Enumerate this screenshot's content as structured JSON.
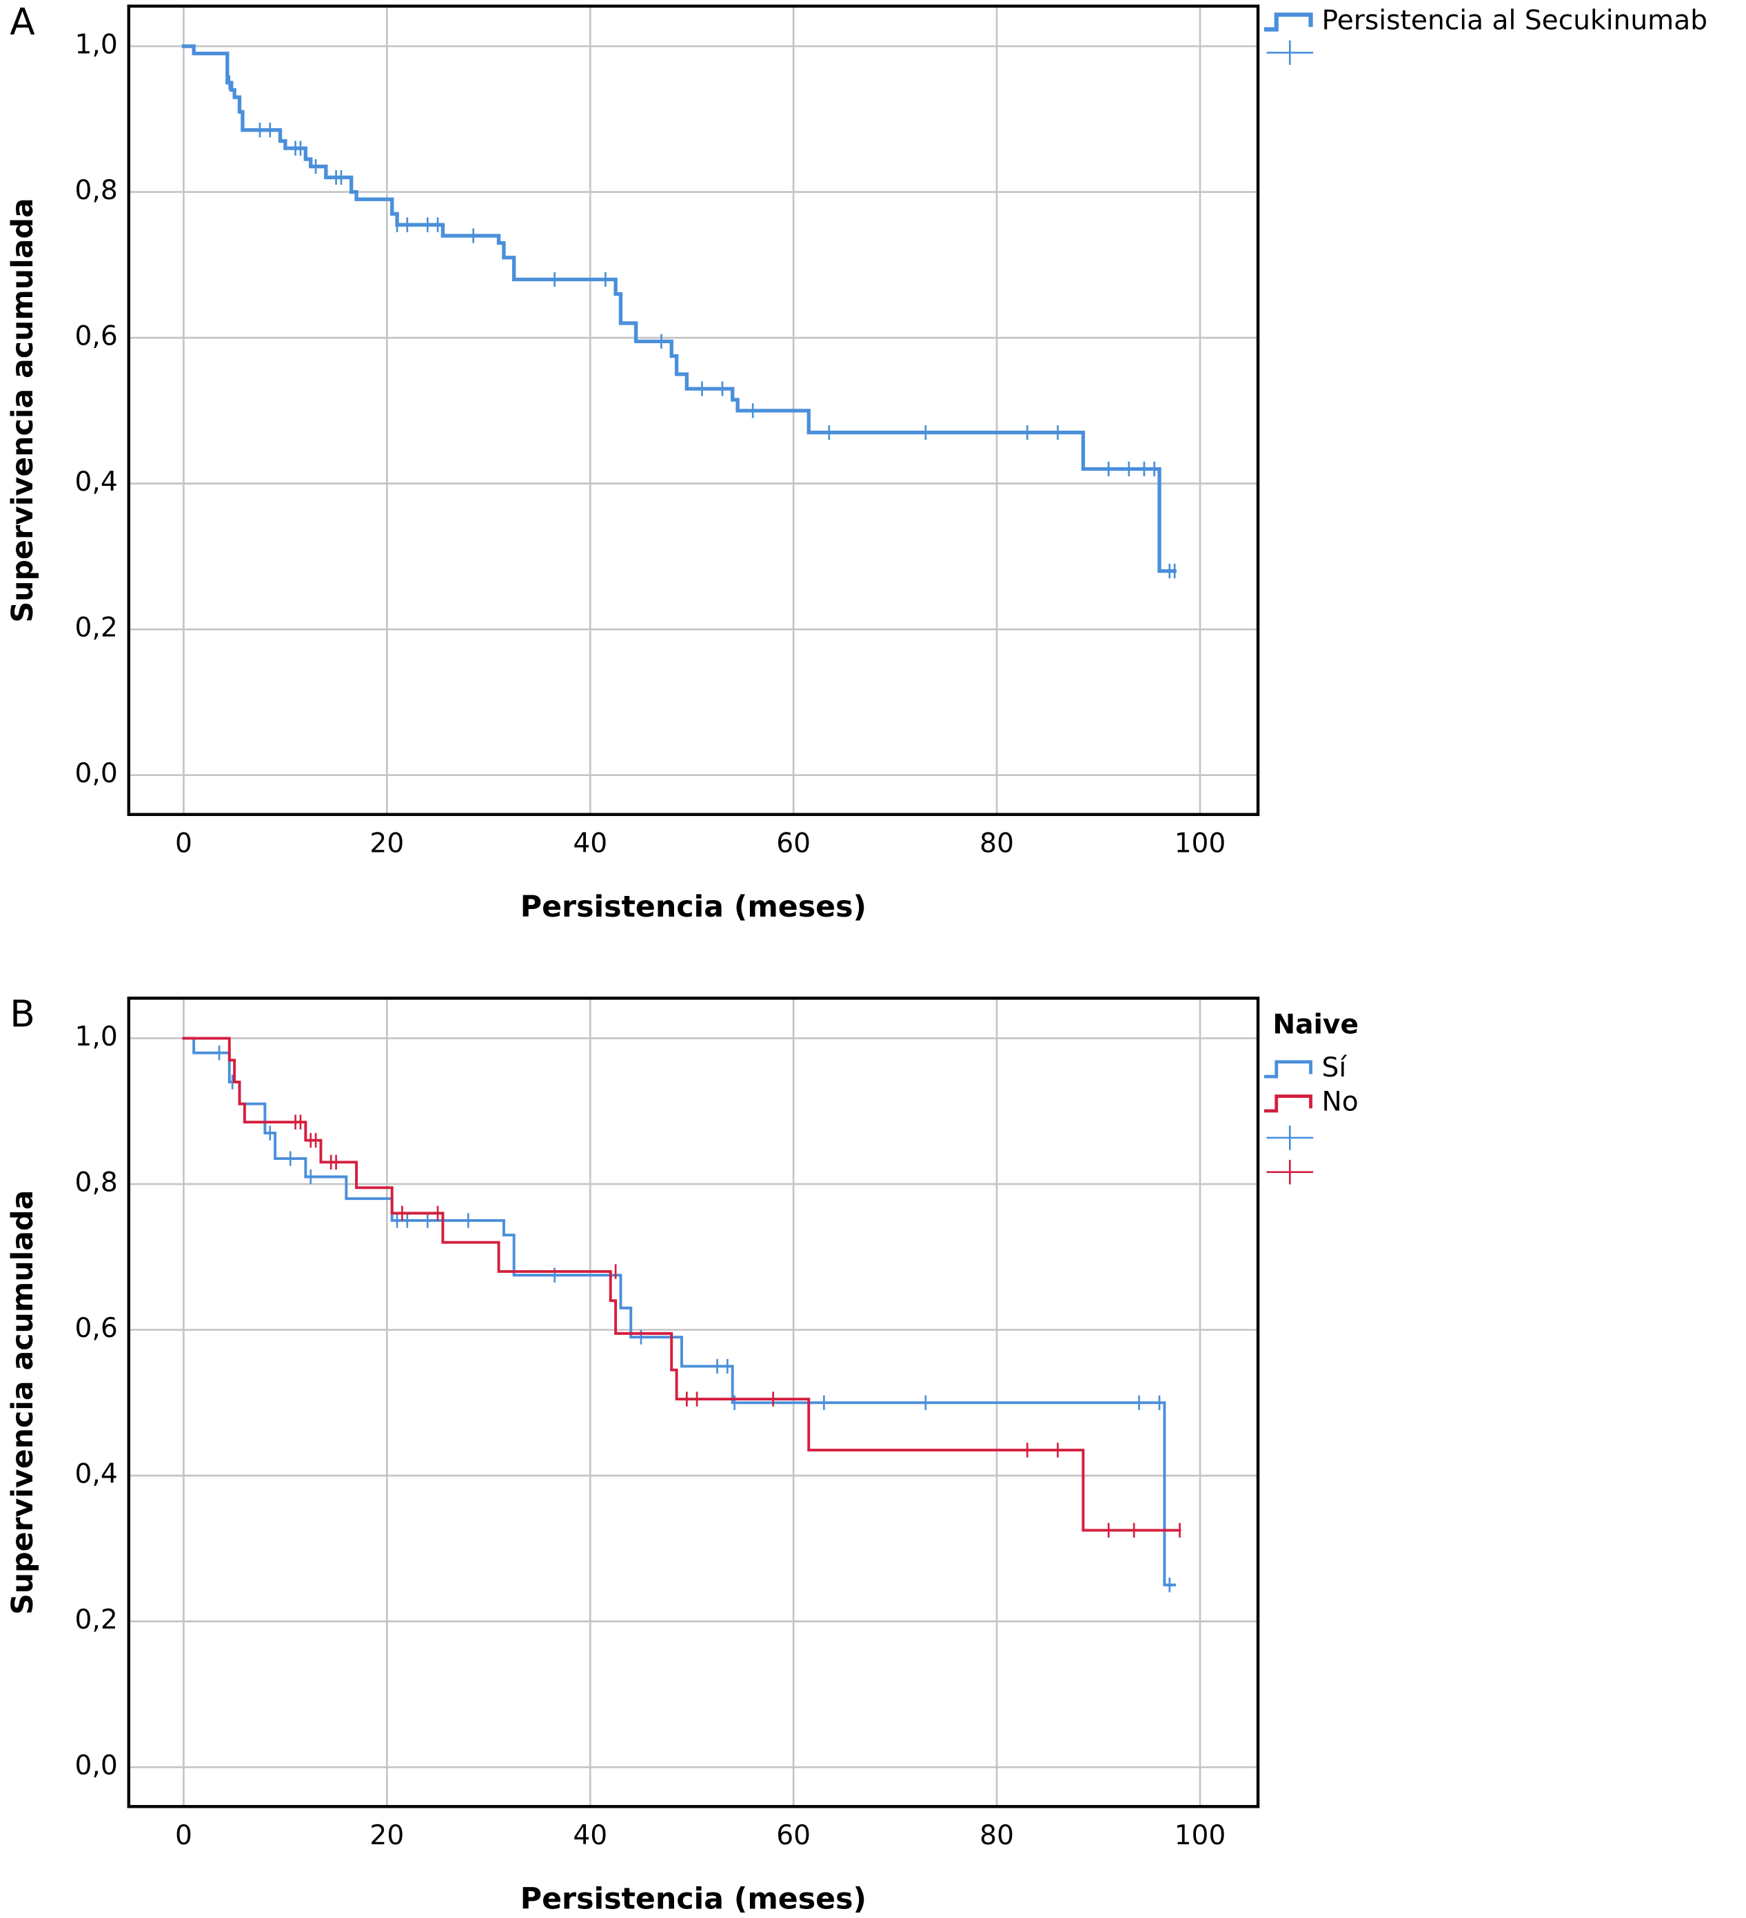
{
  "chart_data": [
    {
      "type": "step",
      "panel_label": "A",
      "x_label": "Persistencia (meses)",
      "y_label": "Supervivencia acumulada",
      "xlim": [
        -5.4,
        105.7
      ],
      "ylim": [
        -0.054,
        1.055
      ],
      "grid": true,
      "line_width": 3,
      "xticks": [
        0,
        20,
        40,
        60,
        80,
        100
      ],
      "yticks": [
        {
          "value": 0,
          "label": "0,0"
        },
        {
          "value": 0.2,
          "label": "0,2"
        },
        {
          "value": 0.4,
          "label": "0,4"
        },
        {
          "value": 0.6,
          "label": "0,6"
        },
        {
          "value": 0.8,
          "label": "0,8"
        },
        {
          "value": 1,
          "label": "1,0"
        }
      ],
      "series": [
        {
          "name": "Persistencia al Secukinumab",
          "color": "#4a8fdb",
          "x": [
            0,
            1,
            4.3,
            4.7,
            5,
            5.5,
            5.8,
            9.5,
            10,
            12,
            12.5,
            14,
            16.5,
            17,
            20.5,
            21,
            25.5,
            31,
            31.5,
            32.5,
            42.5,
            43,
            44.5,
            48,
            48.5,
            49.5,
            54,
            54.5,
            61.5,
            88.5,
            96,
            97.5
          ],
          "values": [
            1,
            0.99,
            0.95,
            0.94,
            0.93,
            0.91,
            0.885,
            0.87,
            0.86,
            0.845,
            0.835,
            0.82,
            0.8,
            0.79,
            0.77,
            0.755,
            0.74,
            0.73,
            0.71,
            0.68,
            0.66,
            0.62,
            0.595,
            0.575,
            0.55,
            0.53,
            0.515,
            0.5,
            0.47,
            0.42,
            0.28,
            0.28
          ],
          "censor_x": [
            4.5,
            7.5,
            8.5,
            11,
            11.5,
            13,
            15,
            15.5,
            21,
            22,
            24,
            25,
            28.5,
            36.5,
            41.5,
            47,
            51,
            53,
            56,
            63.5,
            73,
            83,
            86,
            91,
            93,
            94.5,
            95.5,
            97,
            97.5
          ],
          "censor_values": [
            0.95,
            0.885,
            0.885,
            0.86,
            0.86,
            0.835,
            0.82,
            0.82,
            0.755,
            0.755,
            0.755,
            0.755,
            0.74,
            0.68,
            0.68,
            0.595,
            0.53,
            0.53,
            0.5,
            0.47,
            0.47,
            0.47,
            0.47,
            0.42,
            0.42,
            0.42,
            0.42,
            0.28,
            0.28
          ]
        }
      ]
    },
    {
      "type": "step",
      "panel_label": "B",
      "x_label": "Persistencia (meses)",
      "y_label": "Supervivencia acumulada",
      "legend_title": "Naive",
      "xlim": [
        -5.4,
        105.7
      ],
      "ylim": [
        -0.054,
        1.055
      ],
      "grid": true,
      "line_width": 2.2,
      "xticks": [
        0,
        20,
        40,
        60,
        80,
        100
      ],
      "yticks": [
        {
          "value": 0,
          "label": "0,0"
        },
        {
          "value": 0.2,
          "label": "0,2"
        },
        {
          "value": 0.4,
          "label": "0,4"
        },
        {
          "value": 0.6,
          "label": "0,6"
        },
        {
          "value": 0.8,
          "label": "0,8"
        },
        {
          "value": 1,
          "label": "1,0"
        }
      ],
      "series": [
        {
          "name": "Sí",
          "color": "#4a8fdb",
          "x": [
            0,
            1,
            4.5,
            5.5,
            8,
            9,
            12,
            16,
            20.5,
            31.5,
            32.5,
            43,
            44,
            49,
            54,
            96.5,
            97.5
          ],
          "values": [
            1,
            0.98,
            0.94,
            0.91,
            0.87,
            0.835,
            0.81,
            0.78,
            0.75,
            0.73,
            0.675,
            0.63,
            0.59,
            0.55,
            0.5,
            0.25,
            0.25
          ],
          "censor_x": [
            3.5,
            4.8,
            8.5,
            10.5,
            12.5,
            20.5,
            21,
            22,
            24,
            28,
            36.5,
            45,
            52.5,
            53.5,
            54.2,
            63,
            73,
            94,
            96,
            97
          ],
          "censor_values": [
            0.98,
            0.94,
            0.87,
            0.835,
            0.81,
            0.78,
            0.75,
            0.75,
            0.75,
            0.75,
            0.675,
            0.59,
            0.55,
            0.55,
            0.5,
            0.5,
            0.5,
            0.5,
            0.5,
            0.25
          ]
        },
        {
          "name": "No",
          "color": "#d41f3f",
          "x": [
            0,
            4.5,
            5,
            5.5,
            6,
            12,
            13.5,
            17,
            20.5,
            25.5,
            31,
            42,
            42.5,
            48,
            48.5,
            61.5,
            88.5,
            98
          ],
          "values": [
            1,
            0.97,
            0.94,
            0.91,
            0.885,
            0.86,
            0.83,
            0.795,
            0.76,
            0.72,
            0.68,
            0.64,
            0.595,
            0.545,
            0.505,
            0.435,
            0.325,
            0.325
          ],
          "censor_x": [
            11,
            11.5,
            12.5,
            13,
            14.5,
            15,
            21.5,
            25,
            42.5,
            49.5,
            50.5,
            58,
            83,
            86,
            91,
            93.5,
            98
          ],
          "censor_values": [
            0.885,
            0.885,
            0.86,
            0.86,
            0.83,
            0.83,
            0.76,
            0.76,
            0.68,
            0.505,
            0.505,
            0.505,
            0.435,
            0.435,
            0.325,
            0.325,
            0.325
          ]
        }
      ]
    }
  ]
}
